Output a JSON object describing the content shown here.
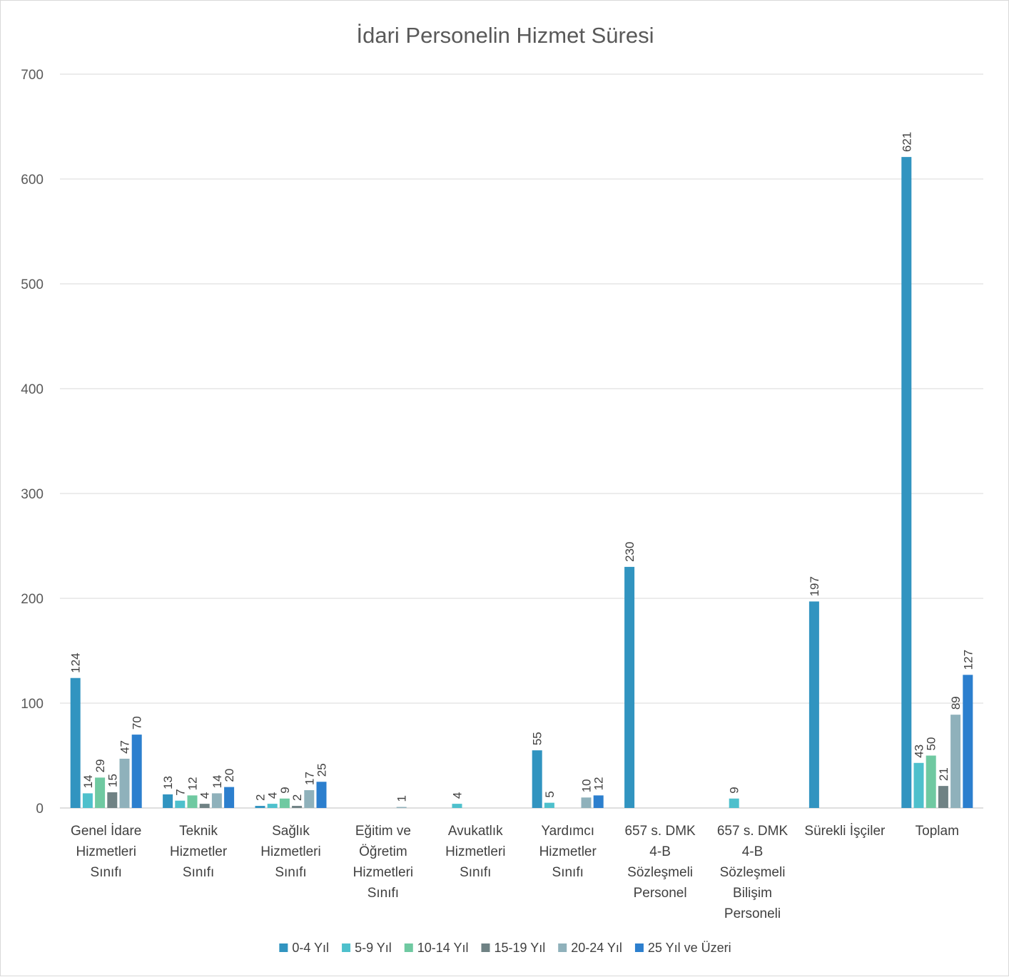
{
  "chart_data": {
    "type": "bar",
    "title": "İdari Personelin Hizmet Süresi",
    "xlabel": "",
    "ylabel": "",
    "ylim": [
      0,
      700
    ],
    "yticks": [
      0,
      100,
      200,
      300,
      400,
      500,
      600,
      700
    ],
    "grid": true,
    "legend_position": "bottom",
    "categories": [
      [
        "Genel İdare",
        "Hizmetleri",
        "Sınıfı"
      ],
      [
        "Teknik",
        "Hizmetler",
        "Sınıfı"
      ],
      [
        "Sağlık",
        "Hizmetleri",
        "Sınıfı"
      ],
      [
        "Eğitim ve",
        "Öğretim",
        "Hizmetleri",
        "Sınıfı"
      ],
      [
        "Avukatlık",
        "Hizmetleri",
        "Sınıfı"
      ],
      [
        "Yardımcı",
        "Hizmetler",
        "Sınıfı"
      ],
      [
        "657 s. DMK",
        "4-B",
        "Sözleşmeli",
        "Personel"
      ],
      [
        "657 s. DMK",
        "4-B",
        "Sözleşmeli",
        "Bilişim",
        "Personeli"
      ],
      [
        "Sürekli İşçiler"
      ],
      [
        "Toplam"
      ]
    ],
    "series": [
      {
        "name": "0-4 Yıl",
        "color": "#3194c0",
        "values": [
          124,
          13,
          2,
          null,
          null,
          55,
          230,
          null,
          197,
          621
        ]
      },
      {
        "name": "5-9 Yıl",
        "color": "#4ec0cc",
        "values": [
          14,
          7,
          4,
          null,
          4,
          5,
          null,
          9,
          null,
          43
        ]
      },
      {
        "name": "10-14 Yıl",
        "color": "#6fc9a1",
        "values": [
          29,
          12,
          9,
          null,
          null,
          null,
          null,
          null,
          null,
          50
        ]
      },
      {
        "name": "15-19 Yıl",
        "color": "#6f8284",
        "values": [
          15,
          4,
          2,
          null,
          null,
          null,
          null,
          null,
          null,
          21
        ]
      },
      {
        "name": "20-24 Yıl",
        "color": "#8fb1bb",
        "values": [
          47,
          14,
          17,
          1,
          null,
          10,
          null,
          null,
          null,
          89
        ]
      },
      {
        "name": "25 Yıl ve Üzeri",
        "color": "#2c7fce",
        "values": [
          70,
          20,
          25,
          null,
          null,
          12,
          null,
          null,
          null,
          127
        ]
      }
    ]
  }
}
